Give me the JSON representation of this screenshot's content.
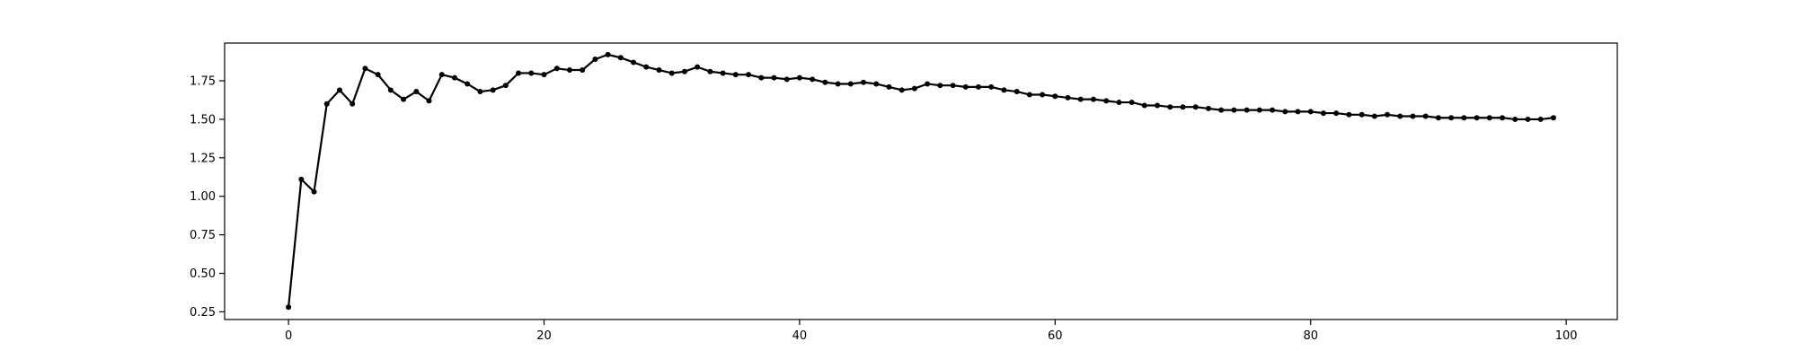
{
  "chart_data": {
    "type": "line",
    "title": "",
    "xlabel": "",
    "ylabel": "",
    "xlim": [
      -5,
      104
    ],
    "ylim": [
      0.2,
      1.995
    ],
    "xticks": [
      0,
      20,
      40,
      60,
      80,
      100
    ],
    "yticks": [
      0.25,
      0.5,
      0.75,
      1.0,
      1.25,
      1.5,
      1.75
    ],
    "xtick_labels": [
      "0",
      "20",
      "40",
      "60",
      "80",
      "100"
    ],
    "ytick_labels": [
      "0.25",
      "0.50",
      "0.75",
      "1.00",
      "1.25",
      "1.50",
      "1.75"
    ],
    "grid": false,
    "legend": "none",
    "series": [
      {
        "color": "#000000",
        "marker": "circle",
        "x": [
          0,
          1,
          2,
          3,
          4,
          5,
          6,
          7,
          8,
          9,
          10,
          11,
          12,
          13,
          14,
          15,
          16,
          17,
          18,
          19,
          20,
          21,
          22,
          23,
          24,
          25,
          26,
          27,
          28,
          29,
          30,
          31,
          32,
          33,
          34,
          35,
          36,
          37,
          38,
          39,
          40,
          41,
          42,
          43,
          44,
          45,
          46,
          47,
          48,
          49,
          50,
          51,
          52,
          53,
          54,
          55,
          56,
          57,
          58,
          59,
          60,
          61,
          62,
          63,
          64,
          65,
          66,
          67,
          68,
          69,
          70,
          71,
          72,
          73,
          74,
          75,
          76,
          77,
          78,
          79,
          80,
          81,
          82,
          83,
          84,
          85,
          86,
          87,
          88,
          89,
          90,
          91,
          92,
          93,
          94,
          95,
          96,
          97,
          98,
          99
        ],
        "y": [
          0.28,
          1.11,
          1.03,
          1.6,
          1.69,
          1.6,
          1.83,
          1.79,
          1.69,
          1.63,
          1.68,
          1.62,
          1.79,
          1.77,
          1.73,
          1.68,
          1.69,
          1.72,
          1.8,
          1.8,
          1.79,
          1.83,
          1.82,
          1.82,
          1.89,
          1.92,
          1.9,
          1.87,
          1.84,
          1.82,
          1.8,
          1.81,
          1.84,
          1.81,
          1.8,
          1.79,
          1.79,
          1.77,
          1.77,
          1.76,
          1.77,
          1.76,
          1.74,
          1.73,
          1.73,
          1.74,
          1.73,
          1.71,
          1.69,
          1.7,
          1.73,
          1.72,
          1.72,
          1.71,
          1.71,
          1.71,
          1.69,
          1.68,
          1.66,
          1.66,
          1.65,
          1.64,
          1.63,
          1.63,
          1.62,
          1.61,
          1.61,
          1.59,
          1.59,
          1.58,
          1.58,
          1.58,
          1.57,
          1.56,
          1.56,
          1.56,
          1.56,
          1.56,
          1.55,
          1.55,
          1.55,
          1.54,
          1.54,
          1.53,
          1.53,
          1.52,
          1.53,
          1.52,
          1.52,
          1.52,
          1.51,
          1.51,
          1.51,
          1.51,
          1.51,
          1.51,
          1.5,
          1.5,
          1.5,
          1.51
        ]
      }
    ]
  }
}
